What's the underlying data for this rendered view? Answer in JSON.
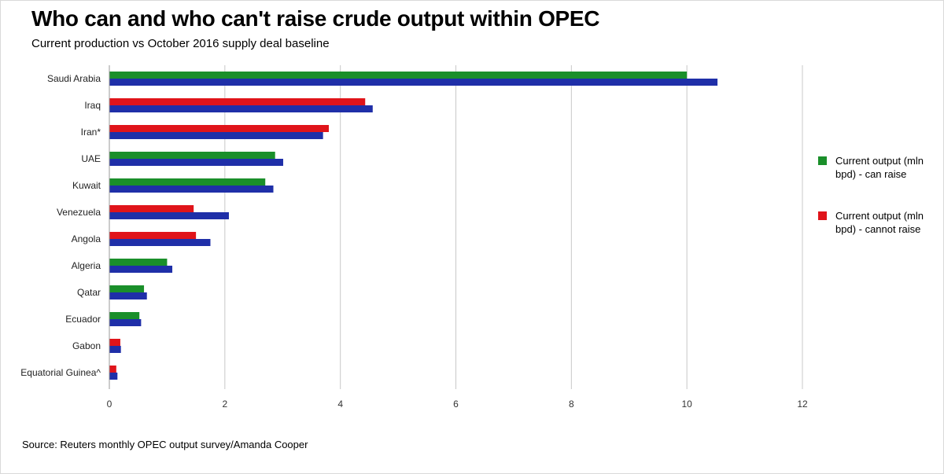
{
  "header": {
    "title": "Who can and who can't raise crude output within OPEC",
    "subtitle": "Current production vs October 2016 supply deal baseline"
  },
  "footer": {
    "source": "Source: Reuters monthly OPEC output survey/Amanda Cooper"
  },
  "colors": {
    "can_raise": "#1a8f2a",
    "cannot_raise": "#e0141a",
    "baseline": "#1f2fa8",
    "grid": "#c8c8c8"
  },
  "chart_data": {
    "type": "bar",
    "orientation": "horizontal",
    "title": "Who can and who can't raise crude output within OPEC",
    "subtitle": "Current production vs October 2016 supply deal baseline",
    "xlim": [
      0,
      12
    ],
    "xticks": [
      "0",
      "2",
      "4",
      "6",
      "8",
      "10",
      "12"
    ],
    "grid": true,
    "legend_position": "right",
    "categories": [
      "Saudi Arabia",
      "Iraq",
      "Iran*",
      "UAE",
      "Kuwait",
      "Venezuela",
      "Angola",
      "Algeria",
      "Qatar",
      "Ecuador",
      "Gabon",
      "Equatorial Guinea^"
    ],
    "series": [
      {
        "key": "current",
        "values": [
          10.0,
          4.43,
          3.8,
          2.87,
          2.7,
          1.46,
          1.5,
          1.0,
          0.6,
          0.52,
          0.19,
          0.12
        ],
        "can_raise": [
          true,
          false,
          false,
          true,
          true,
          false,
          false,
          true,
          true,
          true,
          false,
          false
        ]
      },
      {
        "key": "baseline",
        "values": [
          10.53,
          4.56,
          3.7,
          3.01,
          2.84,
          2.07,
          1.75,
          1.09,
          0.65,
          0.55,
          0.2,
          0.14
        ]
      }
    ],
    "legend": [
      {
        "key": "can_raise",
        "label": "Current output (mln bpd) - can raise"
      },
      {
        "key": "cannot_raise",
        "label": "Current output (mln bpd) - cannot raise"
      }
    ]
  }
}
